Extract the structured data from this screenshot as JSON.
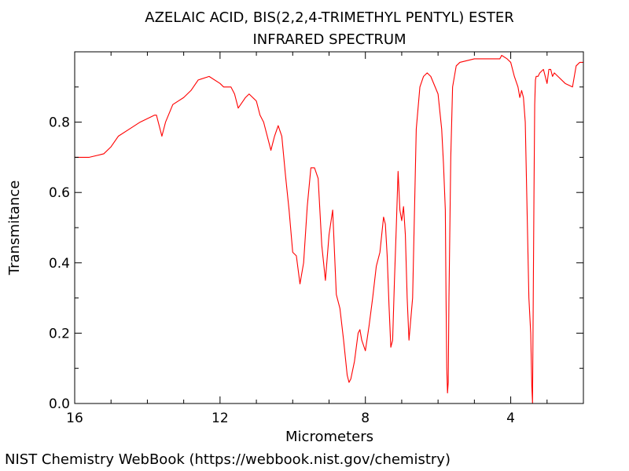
{
  "chart_data": {
    "type": "line",
    "title": "AZELAIC ACID, BIS(2,2,4-TRIMETHYL PENTYL) ESTER",
    "subtitle": "INFRARED SPECTRUM",
    "xlabel": "Micrometers",
    "ylabel": "Transmitance",
    "xlim": [
      16,
      2
    ],
    "ylim": [
      0,
      1
    ],
    "x_ticks": [
      16,
      12,
      8,
      4
    ],
    "x_minor_ticks": [
      15,
      14,
      13,
      11,
      10,
      9,
      7,
      6,
      5,
      3
    ],
    "y_ticks": [
      0.0,
      0.2,
      0.4,
      0.6,
      0.8
    ],
    "y_minor_ticks": [
      0.1,
      0.3,
      0.5,
      0.7,
      0.9
    ],
    "grid": false,
    "line_color": "#ff0000",
    "series": [
      {
        "x": [
          16.0,
          15.6,
          15.2,
          15.0,
          14.8,
          14.5,
          14.2,
          14.0,
          13.8,
          13.75,
          13.7,
          13.6,
          13.5,
          13.3,
          13.0,
          12.8,
          12.6,
          12.3,
          12.0,
          11.9,
          11.7,
          11.6,
          11.5,
          11.3,
          11.2,
          11.0,
          10.9,
          10.8,
          10.7,
          10.6,
          10.5,
          10.4,
          10.3,
          10.2,
          10.1,
          10.0,
          9.9,
          9.8,
          9.7,
          9.6,
          9.5,
          9.4,
          9.3,
          9.2,
          9.1,
          9.0,
          8.9,
          8.8,
          8.7,
          8.6,
          8.5,
          8.45,
          8.4,
          8.3,
          8.2,
          8.15,
          8.1,
          8.0,
          7.9,
          7.8,
          7.7,
          7.6,
          7.5,
          7.45,
          7.4,
          7.35,
          7.3,
          7.25,
          7.2,
          7.15,
          7.1,
          7.05,
          7.0,
          6.95,
          6.9,
          6.85,
          6.8,
          6.7,
          6.6,
          6.5,
          6.4,
          6.3,
          6.2,
          6.0,
          5.9,
          5.85,
          5.8,
          5.78,
          5.76,
          5.74,
          5.72,
          5.7,
          5.65,
          5.6,
          5.5,
          5.4,
          5.0,
          4.5,
          4.3,
          4.25,
          4.1,
          4.0,
          3.9,
          3.8,
          3.75,
          3.7,
          3.65,
          3.6,
          3.55,
          3.5,
          3.45,
          3.42,
          3.4,
          3.38,
          3.36,
          3.34,
          3.32,
          3.3,
          3.25,
          3.2,
          3.1,
          3.0,
          2.95,
          2.9,
          2.85,
          2.8,
          2.7,
          2.5,
          2.3,
          2.2,
          2.1,
          2.0
        ],
        "y": [
          0.7,
          0.7,
          0.71,
          0.73,
          0.76,
          0.78,
          0.8,
          0.81,
          0.82,
          0.82,
          0.8,
          0.76,
          0.8,
          0.85,
          0.87,
          0.89,
          0.92,
          0.93,
          0.91,
          0.9,
          0.9,
          0.88,
          0.84,
          0.87,
          0.88,
          0.86,
          0.82,
          0.8,
          0.76,
          0.72,
          0.76,
          0.79,
          0.76,
          0.65,
          0.55,
          0.43,
          0.42,
          0.34,
          0.4,
          0.56,
          0.67,
          0.67,
          0.64,
          0.45,
          0.35,
          0.48,
          0.55,
          0.31,
          0.27,
          0.18,
          0.08,
          0.06,
          0.07,
          0.12,
          0.2,
          0.21,
          0.18,
          0.15,
          0.22,
          0.3,
          0.39,
          0.43,
          0.53,
          0.51,
          0.42,
          0.28,
          0.16,
          0.18,
          0.35,
          0.5,
          0.66,
          0.55,
          0.52,
          0.56,
          0.48,
          0.3,
          0.18,
          0.3,
          0.78,
          0.9,
          0.93,
          0.94,
          0.93,
          0.88,
          0.78,
          0.68,
          0.55,
          0.3,
          0.1,
          0.03,
          0.06,
          0.3,
          0.7,
          0.9,
          0.96,
          0.97,
          0.98,
          0.98,
          0.98,
          0.99,
          0.98,
          0.97,
          0.93,
          0.9,
          0.87,
          0.89,
          0.87,
          0.8,
          0.55,
          0.3,
          0.2,
          0.05,
          0.0,
          0.3,
          0.6,
          0.85,
          0.92,
          0.93,
          0.93,
          0.94,
          0.95,
          0.91,
          0.95,
          0.95,
          0.93,
          0.94,
          0.93,
          0.91,
          0.9,
          0.96,
          0.97,
          0.97
        ]
      }
    ]
  },
  "footer": "NIST Chemistry WebBook (https://webbook.nist.gov/chemistry)"
}
